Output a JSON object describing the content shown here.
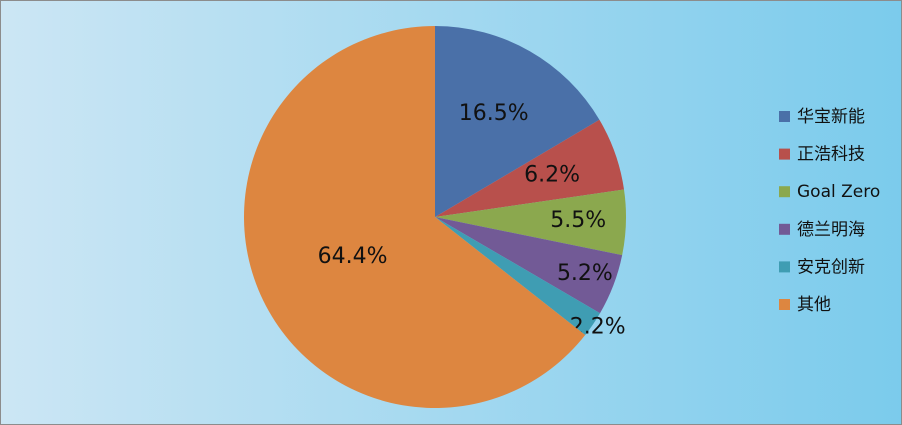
{
  "chart_data": {
    "type": "pie",
    "categories": [
      "华宝新能",
      "正浩科技",
      "Goal Zero",
      "德兰明海",
      "安克创新",
      "其他"
    ],
    "values": [
      16.5,
      6.2,
      5.5,
      5.2,
      2.2,
      64.4
    ],
    "value_labels": [
      "16.5%",
      "6.2%",
      "5.5%",
      "5.2%",
      "2.2%",
      "64.4%"
    ],
    "colors": [
      "#4a70a8",
      "#b8504c",
      "#8ba84e",
      "#725a96",
      "#3f9db3",
      "#dd8640"
    ],
    "legend": "right"
  }
}
